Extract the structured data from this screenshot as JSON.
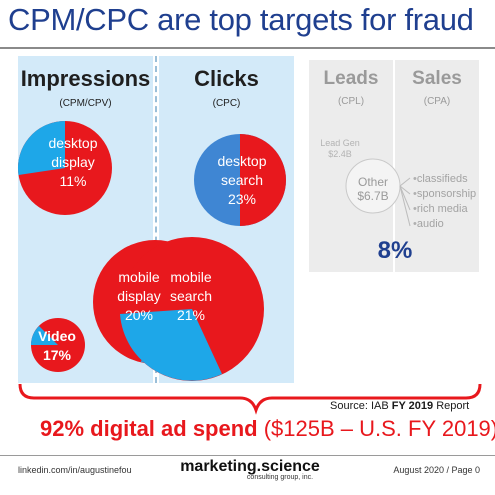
{
  "title": "CPM/CPC are top targets for fraud",
  "columns": {
    "impressions": {
      "name": "Impressions",
      "sub": "(CPM/CPV)"
    },
    "clicks": {
      "name": "Clicks",
      "sub": "(CPC)"
    },
    "leads": {
      "name": "Leads",
      "sub": "(CPL)"
    },
    "sales": {
      "name": "Sales",
      "sub": "(CPA)"
    }
  },
  "segments": {
    "desktop_display": {
      "line1": "desktop",
      "line2": "display",
      "pct": "11%"
    },
    "mobile_display": {
      "line1": "mobile",
      "line2": "display",
      "pct": "20%"
    },
    "video": {
      "line1": "Video",
      "pct": "17%"
    },
    "desktop_search": {
      "line1": "desktop",
      "line2": "search",
      "pct": "23%"
    },
    "mobile_search": {
      "line1": "mobile",
      "line2": "search",
      "pct": "21%"
    },
    "lead_gen": {
      "line1": "Lead Gen",
      "value": "$2.4B"
    },
    "other": {
      "line1": "Other",
      "value": "$6.7B"
    }
  },
  "other_breakdown": [
    "classifieds",
    "sponsorship",
    "rich media",
    "audio"
  ],
  "other_share": "8%",
  "source": {
    "prefix": "Source: IAB ",
    "bold": "FY 2019",
    "suffix": " Report"
  },
  "summary": {
    "bold": "92% digital ad spend",
    "thin": " ($125B – U.S. FY 2019)"
  },
  "footer": {
    "left": "linkedin.com/in/augustinefou",
    "brand": "marketing.science",
    "brand_sub": "consulting group, inc.",
    "right": "August 2020 / Page 0"
  },
  "colors": {
    "title": "#1f3f8f",
    "red": "#e8181d",
    "blue": "#3f86d3",
    "light_blue": "#1ea7e8",
    "panel_blue": "#d3eaf9",
    "panel_gray": "#ececec"
  }
}
